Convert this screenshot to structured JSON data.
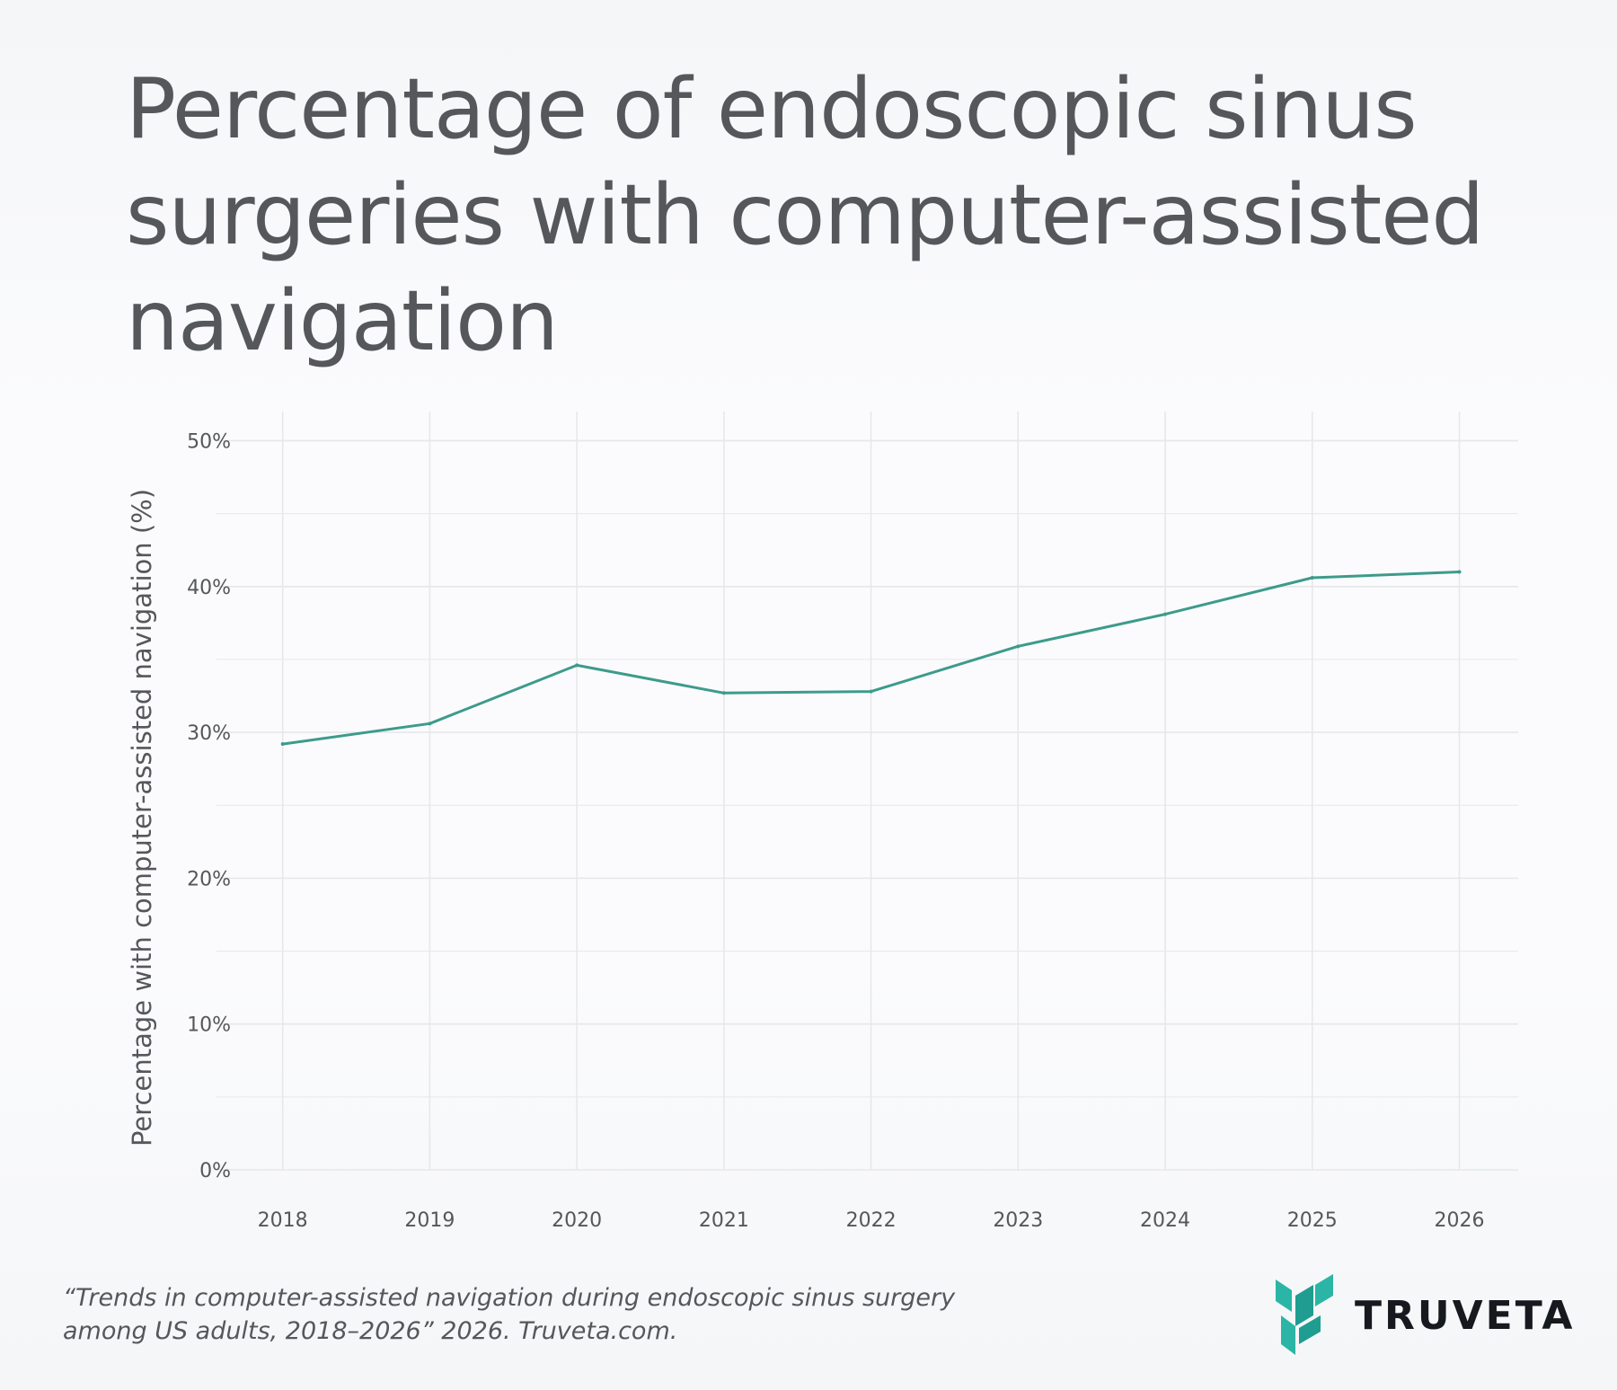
{
  "title": "Percentage of endoscopic sinus surgeries with computer-assisted navigation",
  "citation": {
    "line1": "“Trends in computer-assisted navigation during endoscopic sinus surgery",
    "line2": "among US adults, 2018–2026” 2026. Truveta.com."
  },
  "logo": {
    "text": "TRUVETA",
    "icon": "truveta-logo-icon"
  },
  "colors": {
    "line": "#3d9b8b",
    "logo_teal": "#2bb5a6",
    "grid": "#e6e7e9",
    "text": "#55575a"
  },
  "chart_data": {
    "type": "line",
    "title": "Percentage of endoscopic sinus surgeries with computer-assisted navigation",
    "xlabel": "",
    "ylabel": "Percentage with computer-assisted navigation (%)",
    "x": [
      2018,
      2019,
      2020,
      2021,
      2022,
      2023,
      2024,
      2025,
      2026
    ],
    "series": [
      {
        "values": [
          29.2,
          30.6,
          34.6,
          32.7,
          32.8,
          35.9,
          38.1,
          40.6,
          41.0
        ]
      }
    ],
    "ylim": [
      0,
      52
    ],
    "xlim": [
      2017.55,
      2026.4
    ],
    "y_ticks": [
      0,
      10,
      20,
      30,
      40,
      50
    ],
    "y_tick_labels": [
      "0%",
      "10%",
      "20%",
      "30%",
      "40%",
      "50%"
    ],
    "x_tick_labels": [
      "2018",
      "2019",
      "2020",
      "2021",
      "2022",
      "2023",
      "2024",
      "2025",
      "2026"
    ],
    "grid": true,
    "legend": "none"
  }
}
